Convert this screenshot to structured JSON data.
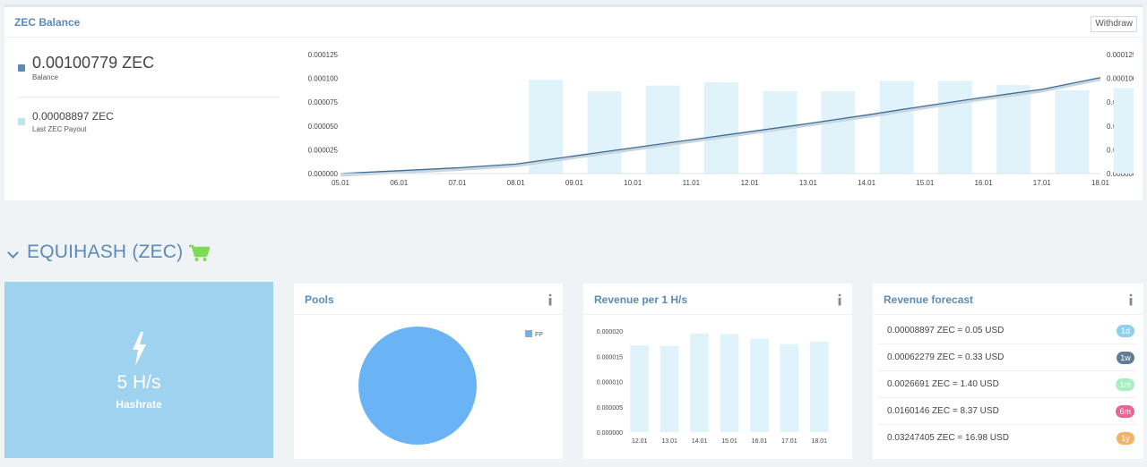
{
  "balance": {
    "title": "ZEC Balance",
    "withdraw_label": "Withdraw",
    "balance_value": "0.00100779 ZEC",
    "balance_label": "Balance",
    "balance_color": "#5b8bb8",
    "payout_value": "0.00008897 ZEC",
    "payout_label": "Last ZEC Payout",
    "payout_color": "#bde4ec"
  },
  "chart_data": [
    {
      "type": "bar+line",
      "title": "",
      "categories": [
        "05.01",
        "06.01",
        "07.01",
        "08.01",
        "09.01",
        "10.01",
        "11.01",
        "12.01",
        "13.01",
        "14.01",
        "15.01",
        "16.01",
        "17.01",
        "18.01"
      ],
      "series": [
        {
          "type": "bar",
          "values": [
            0,
            0,
            0,
            9.85e-05,
            8.65e-05,
            9.25e-05,
            9.6e-05,
            8.65e-05,
            8.65e-05,
            9.75e-05,
            9.75e-05,
            9.3e-05,
            8.75e-05,
            9e-05
          ]
        },
        {
          "type": "line",
          "values": [
            0,
            3e-06,
            6e-06,
            1e-05,
            1.85e-05,
            2.7e-05,
            3.55e-05,
            4.4e-05,
            5.25e-05,
            6.15e-05,
            7.1e-05,
            8e-05,
            8.85e-05,
            0.0001008
          ]
        }
      ],
      "ylim": [
        0,
        0.000125
      ],
      "yticks": [
        "0.000000",
        "0.000025",
        "0.000050",
        "0.000075",
        "0.000100",
        "0.000125"
      ],
      "bar_color": "#e0f3fb",
      "line_color": "#3f6e95"
    },
    {
      "type": "pie",
      "title": "",
      "slices": [
        {
          "label": "FP",
          "value": 100
        }
      ],
      "legend": "top-right",
      "color": "#6ab4f5"
    },
    {
      "type": "bar",
      "title": "",
      "categories": [
        "12.01",
        "13.01",
        "14.01",
        "15.01",
        "16.01",
        "17.01",
        "18.01"
      ],
      "values": [
        1.72e-05,
        1.71e-05,
        1.95e-05,
        1.94e-05,
        1.85e-05,
        1.74e-05,
        1.79e-05
      ],
      "ylim": [
        0,
        2e-05
      ],
      "yticks": [
        "0.000000",
        "0.000005",
        "0.000010",
        "0.000015",
        "0.000020"
      ],
      "bar_color": "#e0f3fb"
    }
  ],
  "section": {
    "title": "EQUIHASH (ZEC)",
    "cart_icon": "cart-icon",
    "cart_color": "#7ed957"
  },
  "hashrate": {
    "value": "5 H/s",
    "label": "Hashrate",
    "icon": "bolt-icon"
  },
  "pools": {
    "title": "Pools",
    "legend_label": "FP"
  },
  "revenue_per": {
    "title": "Revenue per 1 H/s"
  },
  "forecast": {
    "title": "Revenue forecast",
    "rows": [
      {
        "text": "0.00008897 ZEC = 0.05 USD",
        "badge": "1d",
        "color": "#8fd0ec"
      },
      {
        "text": "0.00062279 ZEC = 0.33 USD",
        "badge": "1w",
        "color": "#5f7d96"
      },
      {
        "text": "0.0026691 ZEC = 1.40 USD",
        "badge": "1m",
        "color": "#a6efc0"
      },
      {
        "text": "0.0160146 ZEC = 8.37 USD",
        "badge": "6m",
        "color": "#ea6591"
      },
      {
        "text": "0.03247405 ZEC = 16.98 USD",
        "badge": "1y",
        "color": "#f2b366"
      }
    ]
  }
}
